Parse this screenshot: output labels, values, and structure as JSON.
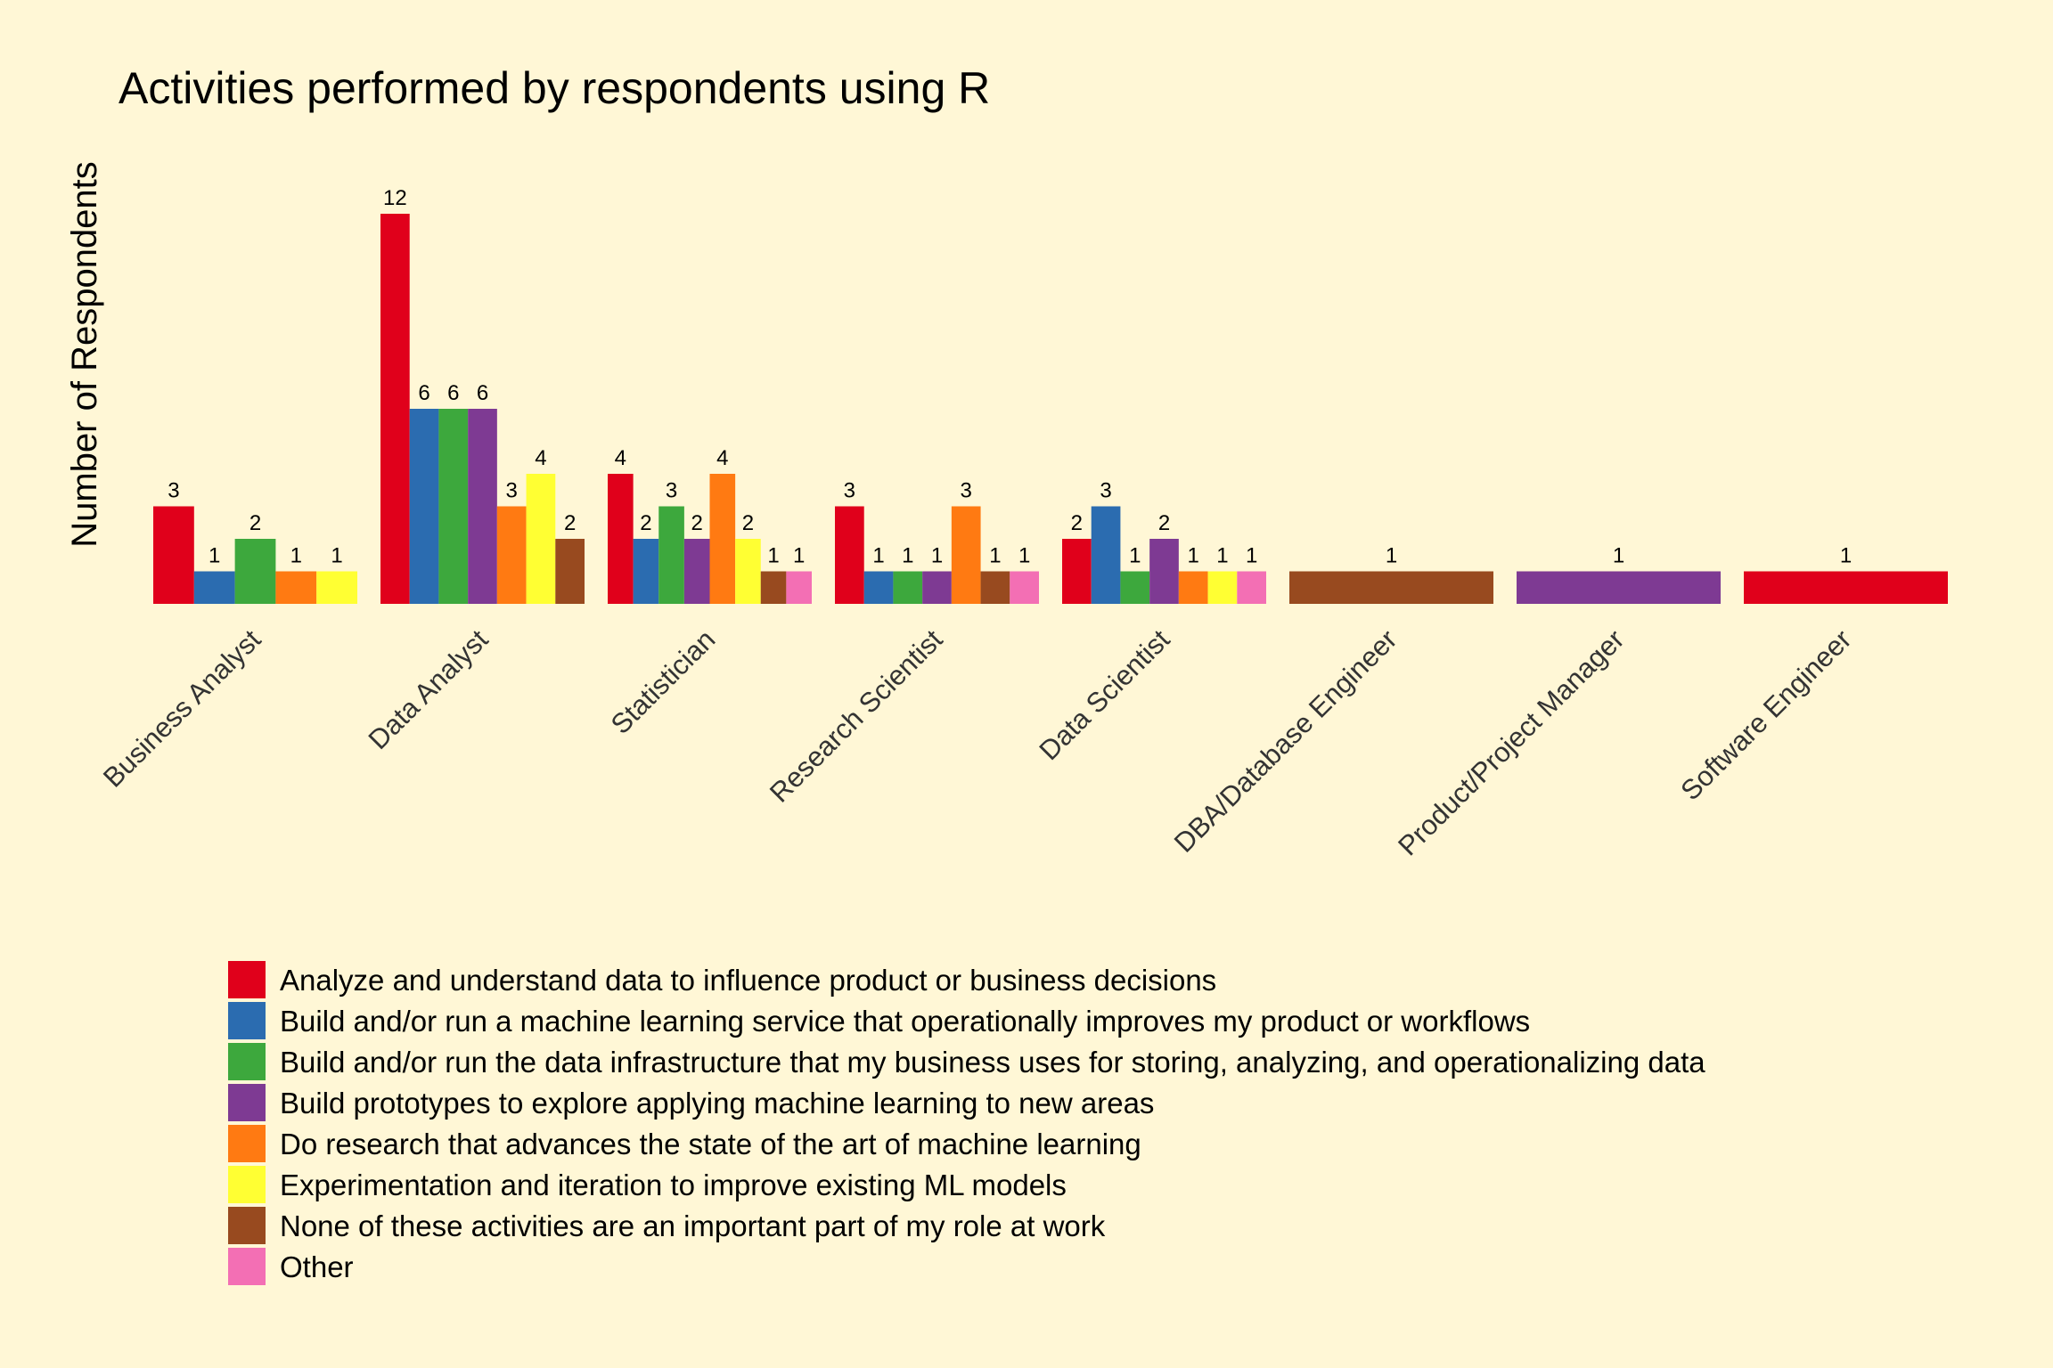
{
  "chart_data": {
    "type": "bar",
    "title": "Activities performed by respondents using R",
    "xlabel": "",
    "ylabel": "Number of Respondents",
    "ylim": [
      0,
      12.6
    ],
    "grid": false,
    "legend_position": "bottom",
    "series_names": [
      "Analyze and understand data to influence product or business decisions",
      "Build and/or run a machine learning service that operationally improves my product or workflows",
      "Build and/or run the data infrastructure that my business uses for storing, analyzing, and operationalizing data",
      "Build prototypes to explore applying machine learning to new areas",
      "Do research that advances the state of the art of machine learning",
      "Experimentation and iteration to improve existing ML models",
      "None of these activities are an important part of my role at work",
      "Other"
    ],
    "colors": [
      "#E0001B",
      "#2B6CB0",
      "#3DA83D",
      "#7E3A93",
      "#FF7A12",
      "#FFFF33",
      "#984A1F",
      "#F36FB4"
    ],
    "groups": [
      {
        "category": "Business Analyst",
        "bars": [
          {
            "s": 0,
            "value": 3
          },
          {
            "s": 1,
            "value": 1
          },
          {
            "s": 2,
            "value": 2
          },
          {
            "s": 4,
            "value": 1
          },
          {
            "s": 5,
            "value": 1
          }
        ]
      },
      {
        "category": "Data Analyst",
        "bars": [
          {
            "s": 0,
            "value": 12
          },
          {
            "s": 1,
            "value": 6
          },
          {
            "s": 2,
            "value": 6
          },
          {
            "s": 3,
            "value": 6
          },
          {
            "s": 4,
            "value": 3
          },
          {
            "s": 5,
            "value": 4
          },
          {
            "s": 6,
            "value": 2
          }
        ]
      },
      {
        "category": "Statistician",
        "bars": [
          {
            "s": 0,
            "value": 4
          },
          {
            "s": 1,
            "value": 2
          },
          {
            "s": 2,
            "value": 3
          },
          {
            "s": 3,
            "value": 2
          },
          {
            "s": 4,
            "value": 4
          },
          {
            "s": 5,
            "value": 2
          },
          {
            "s": 6,
            "value": 1
          },
          {
            "s": 7,
            "value": 1
          }
        ]
      },
      {
        "category": "Research Scientist",
        "bars": [
          {
            "s": 0,
            "value": 3
          },
          {
            "s": 1,
            "value": 1
          },
          {
            "s": 2,
            "value": 1
          },
          {
            "s": 3,
            "value": 1
          },
          {
            "s": 4,
            "value": 3
          },
          {
            "s": 6,
            "value": 1
          },
          {
            "s": 7,
            "value": 1
          }
        ]
      },
      {
        "category": "Data Scientist",
        "bars": [
          {
            "s": 0,
            "value": 2
          },
          {
            "s": 1,
            "value": 3
          },
          {
            "s": 2,
            "value": 1
          },
          {
            "s": 3,
            "value": 2
          },
          {
            "s": 4,
            "value": 1
          },
          {
            "s": 5,
            "value": 1
          },
          {
            "s": 7,
            "value": 1
          }
        ]
      },
      {
        "category": "DBA/Database Engineer",
        "bars": [
          {
            "s": 6,
            "value": 1
          }
        ]
      },
      {
        "category": "Product/Project Manager",
        "bars": [
          {
            "s": 3,
            "value": 1
          }
        ]
      },
      {
        "category": "Software Engineer",
        "bars": [
          {
            "s": 0,
            "value": 1
          }
        ]
      }
    ]
  }
}
